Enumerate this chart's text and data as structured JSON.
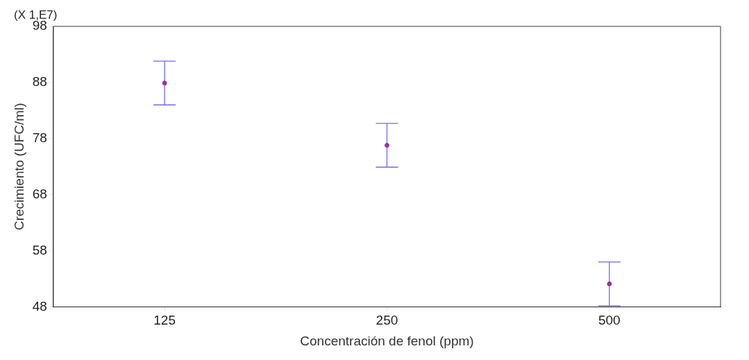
{
  "chart_data": {
    "type": "scatter",
    "xlabel": "Concentración de fenol (ppm)",
    "ylabel": "Crecimiento (UFC/ml)",
    "annotations": [
      "(X 1,E7)"
    ],
    "categories": [
      "125",
      "250",
      "500"
    ],
    "series": [
      {
        "color": "#993399",
        "values": [
          87.9,
          76.8,
          52.1
        ],
        "errors": [
          3.9,
          3.9,
          3.9
        ]
      }
    ],
    "ylim": [
      48,
      98
    ],
    "yticks": [
      48,
      58,
      68,
      78,
      88,
      98
    ],
    "marker": "circle"
  }
}
